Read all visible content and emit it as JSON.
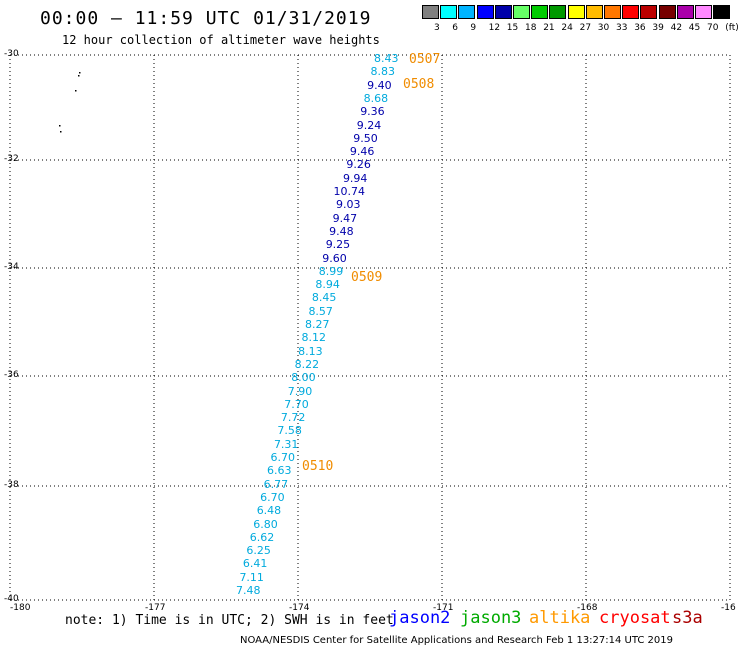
{
  "header": {
    "title": "00:00 – 11:59 UTC 01/31/2019",
    "subtitle": "12 hour collection of altimeter wave heights"
  },
  "color_scale": {
    "colors": [
      "#808080",
      "#00ffff",
      "#00b4ff",
      "#0000ff",
      "#0000aa",
      "#66ff66",
      "#00cc00",
      "#009900",
      "#ffff00",
      "#ffbb00",
      "#ff7700",
      "#ff0000",
      "#bb0000",
      "#770000",
      "#aa00aa",
      "#ff88ff",
      "#000000"
    ],
    "labels": [
      "3",
      "6",
      "9",
      "12",
      "15",
      "18",
      "21",
      "24",
      "27",
      "30",
      "33",
      "36",
      "39",
      "42",
      "45",
      "70",
      "(ft)"
    ]
  },
  "axes": {
    "y_labels": [
      "-30",
      "-32",
      "-34",
      "-36",
      "-38",
      "-40"
    ],
    "x_labels": [
      "-180",
      "-177",
      "-174",
      "-171",
      "-168",
      "-16"
    ]
  },
  "track": {
    "values": [
      {
        "text": "8.43",
        "color": "#00aadd"
      },
      {
        "text": "8.83",
        "color": "#00aadd"
      },
      {
        "text": "9.40",
        "color": "#0000aa"
      },
      {
        "text": "8.68",
        "color": "#00aadd"
      },
      {
        "text": "9.36",
        "color": "#0000aa"
      },
      {
        "text": "9.24",
        "color": "#0000aa"
      },
      {
        "text": "9.50",
        "color": "#0000aa"
      },
      {
        "text": "9.46",
        "color": "#0000aa"
      },
      {
        "text": "9.26",
        "color": "#0000aa"
      },
      {
        "text": "9.94",
        "color": "#0000aa"
      },
      {
        "text": "10.74",
        "color": "#0000aa"
      },
      {
        "text": "9.03",
        "color": "#0000aa"
      },
      {
        "text": "9.47",
        "color": "#0000aa"
      },
      {
        "text": "9.48",
        "color": "#0000aa"
      },
      {
        "text": "9.25",
        "color": "#0000aa"
      },
      {
        "text": "9.60",
        "color": "#0000aa"
      },
      {
        "text": "8.99",
        "color": "#00aadd"
      },
      {
        "text": "8.94",
        "color": "#00aadd"
      },
      {
        "text": "8.45",
        "color": "#00aadd"
      },
      {
        "text": "8.57",
        "color": "#00aadd"
      },
      {
        "text": "8.27",
        "color": "#00aadd"
      },
      {
        "text": "8.12",
        "color": "#00aadd"
      },
      {
        "text": "8.13",
        "color": "#00aadd"
      },
      {
        "text": "8.22",
        "color": "#00aadd"
      },
      {
        "text": "8.00",
        "color": "#00aadd"
      },
      {
        "text": "7.90",
        "color": "#00aadd"
      },
      {
        "text": "7.70",
        "color": "#00aadd"
      },
      {
        "text": "7.72",
        "color": "#00aadd"
      },
      {
        "text": "7.58",
        "color": "#00aadd"
      },
      {
        "text": "7.31",
        "color": "#00aadd"
      },
      {
        "text": "6.70",
        "color": "#00aadd"
      },
      {
        "text": "6.63",
        "color": "#00aadd"
      },
      {
        "text": "6.77",
        "color": "#00aadd"
      },
      {
        "text": "6.70",
        "color": "#00aadd"
      },
      {
        "text": "6.48",
        "color": "#00aadd"
      },
      {
        "text": "6.80",
        "color": "#00aadd"
      },
      {
        "text": "6.62",
        "color": "#00aadd"
      },
      {
        "text": "6.25",
        "color": "#00aadd"
      },
      {
        "text": "6.41",
        "color": "#00aadd"
      },
      {
        "text": "7.11",
        "color": "#00aadd"
      },
      {
        "text": "7.48",
        "color": "#00aadd"
      }
    ],
    "time_labels": [
      "0507",
      "0508",
      "0509",
      "0510"
    ]
  },
  "note": "note: 1) Time is in UTC; 2) SWH is in feet",
  "satellites": [
    {
      "name": "jason2",
      "color": "#0000ff"
    },
    {
      "name": "jason3",
      "color": "#00aa00"
    },
    {
      "name": "altika",
      "color": "#ff9900"
    },
    {
      "name": "cryosat",
      "color": "#ff0000"
    },
    {
      "name": "s3a",
      "color": "#aa0000"
    }
  ],
  "footer": "NOAA/NESDIS Center for Satellite Applications and Research   Feb  1 13:27:14 UTC 2019"
}
